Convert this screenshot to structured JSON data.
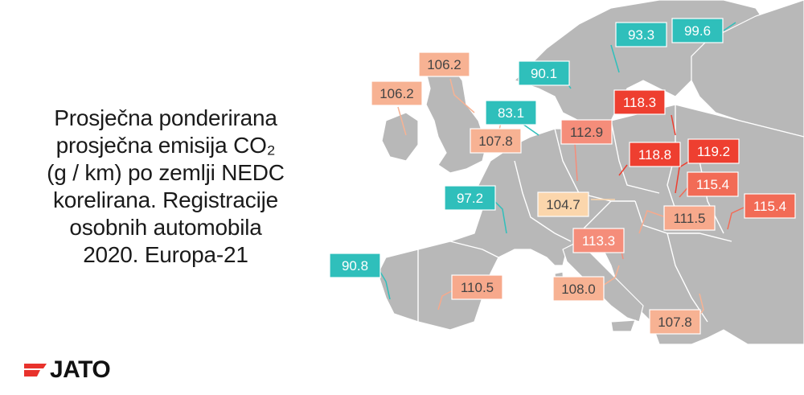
{
  "title": {
    "lines": [
      "Prosječna ponderirana",
      "prosječna emisija CO₂",
      "(g / km) po zemlji NEDC",
      "korelirana. Registracije",
      "osobnih automobila",
      "2020. Europa-21"
    ]
  },
  "brand": {
    "name": "JATO",
    "accent": "#e8322c"
  },
  "colors": {
    "sea": "#ffffff",
    "land": "#b8b8b8",
    "border": "#ffffff",
    "low": "#3cc4c0",
    "mid_light": "#f9c99c",
    "mid": "#f7a98c",
    "high": "#f58d7a",
    "higher": "#f26b56",
    "highest": "#ee3f30"
  },
  "labels": [
    {
      "id": "ireland",
      "value": "106.2",
      "color": "#f7b293",
      "text": "#444444"
    },
    {
      "id": "scotland",
      "value": "106.2",
      "color": "#f7b293",
      "text": "#444444"
    },
    {
      "id": "uk",
      "value": "107.8",
      "color": "#f7b293",
      "text": "#444444"
    },
    {
      "id": "netherlands",
      "value": "83.1",
      "color": "#2fbfbb",
      "text": "#ffffff"
    },
    {
      "id": "denmark",
      "value": "90.1",
      "color": "#2fbfbb",
      "text": "#ffffff"
    },
    {
      "id": "sweden",
      "value": "93.3",
      "color": "#2fbfbb",
      "text": "#ffffff"
    },
    {
      "id": "finland",
      "value": "99.6",
      "color": "#2fbfbb",
      "text": "#ffffff"
    },
    {
      "id": "germany",
      "value": "112.9",
      "color": "#f58d7a",
      "text": "#444444"
    },
    {
      "id": "poland",
      "value": "118.3",
      "color": "#ee3f30",
      "text": "#ffffff"
    },
    {
      "id": "czechia",
      "value": "118.8",
      "color": "#ee3f30",
      "text": "#ffffff"
    },
    {
      "id": "slovakia",
      "value": "119.2",
      "color": "#ee3f30",
      "text": "#ffffff"
    },
    {
      "id": "hungary",
      "value": "115.4",
      "color": "#f26b56",
      "text": "#ffffff"
    },
    {
      "id": "romania",
      "value": "115.4",
      "color": "#f26b56",
      "text": "#ffffff"
    },
    {
      "id": "croatia",
      "value": "111.5",
      "color": "#f7a98c",
      "text": "#444444"
    },
    {
      "id": "switzerland",
      "value": "104.7",
      "color": "#fbd6ac",
      "text": "#444444"
    },
    {
      "id": "france",
      "value": "97.2",
      "color": "#2fbfbb",
      "text": "#ffffff"
    },
    {
      "id": "austria-italy",
      "value": "113.3",
      "color": "#f58d7a",
      "text": "#ffffff"
    },
    {
      "id": "portugal",
      "value": "90.8",
      "color": "#2fbfbb",
      "text": "#ffffff"
    },
    {
      "id": "spain",
      "value": "110.5",
      "color": "#f7a98c",
      "text": "#444444"
    },
    {
      "id": "italy",
      "value": "108.0",
      "color": "#f7b293",
      "text": "#444444"
    },
    {
      "id": "greece",
      "value": "107.8",
      "color": "#f7b293",
      "text": "#444444"
    }
  ]
}
